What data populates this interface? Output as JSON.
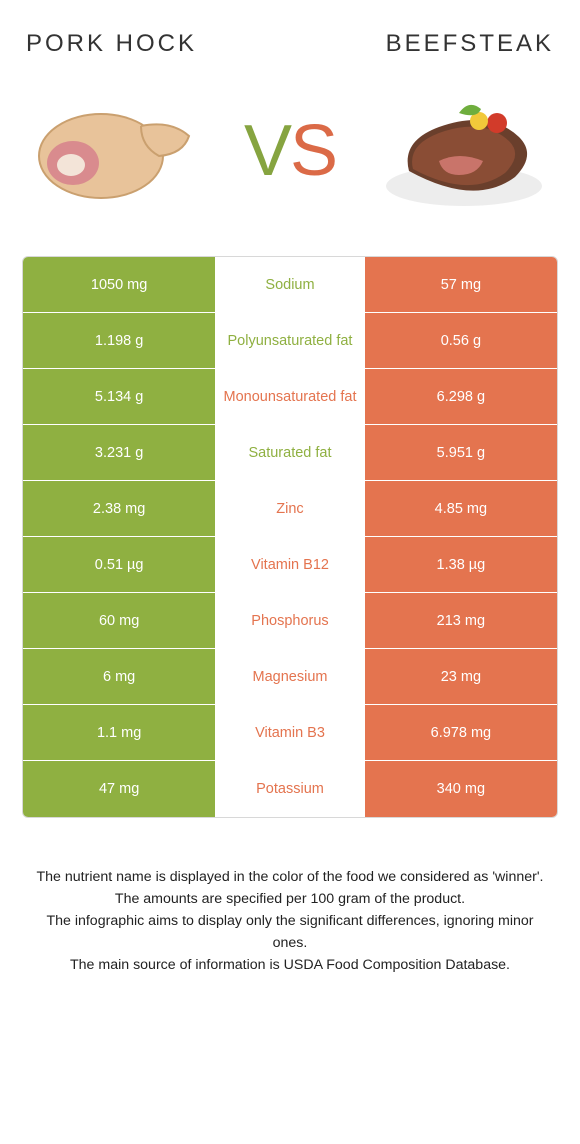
{
  "colors": {
    "left": "#8fb041",
    "right": "#e4744f",
    "left_text": "#8fb041",
    "right_text": "#e4744f"
  },
  "food_left": {
    "title": "Pork hock"
  },
  "food_right": {
    "title": "Beefsteak"
  },
  "vs": {
    "v": "V",
    "s": "S"
  },
  "rows": [
    {
      "name": "Sodium",
      "left": "1050 mg",
      "right": "57 mg",
      "winner": "left"
    },
    {
      "name": "Polyunsaturated fat",
      "left": "1.198 g",
      "right": "0.56 g",
      "winner": "left"
    },
    {
      "name": "Monounsaturated fat",
      "left": "5.134 g",
      "right": "6.298 g",
      "winner": "right"
    },
    {
      "name": "Saturated fat",
      "left": "3.231 g",
      "right": "5.951 g",
      "winner": "left"
    },
    {
      "name": "Zinc",
      "left": "2.38 mg",
      "right": "4.85 mg",
      "winner": "right"
    },
    {
      "name": "Vitamin B12",
      "left": "0.51 µg",
      "right": "1.38 µg",
      "winner": "right"
    },
    {
      "name": "Phosphorus",
      "left": "60 mg",
      "right": "213 mg",
      "winner": "right"
    },
    {
      "name": "Magnesium",
      "left": "6 mg",
      "right": "23 mg",
      "winner": "right"
    },
    {
      "name": "Vitamin B3",
      "left": "1.1 mg",
      "right": "6.978 mg",
      "winner": "right"
    },
    {
      "name": "Potassium",
      "left": "47 mg",
      "right": "340 mg",
      "winner": "right"
    }
  ],
  "footer": {
    "l1": "The nutrient name is displayed in the color of the food we considered as 'winner'.",
    "l2": "The amounts are specified per 100 gram of the product.",
    "l3": "The infographic aims to display only the significant differences, ignoring minor ones.",
    "l4": "The main source of information is USDA Food Composition Database."
  }
}
